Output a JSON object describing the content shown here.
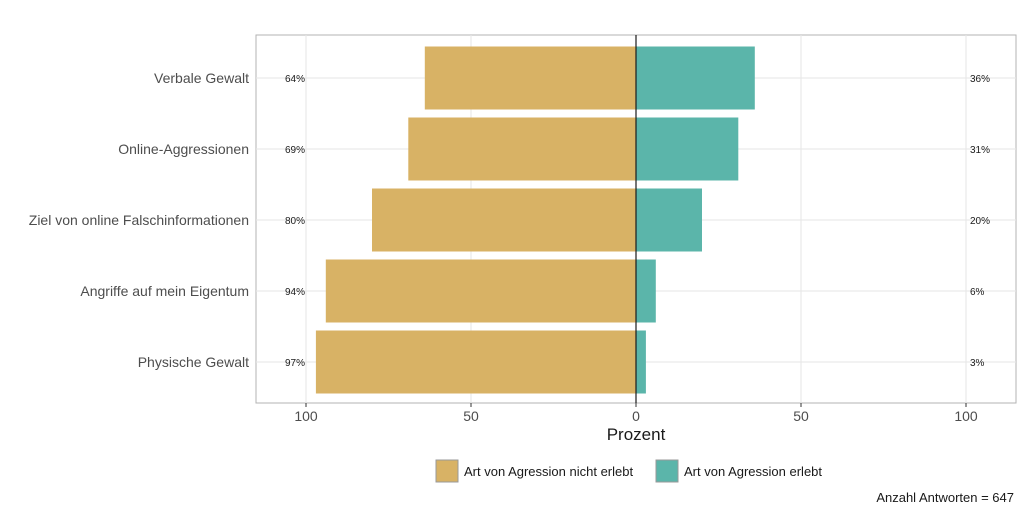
{
  "chart_data": {
    "type": "bar",
    "orientation": "horizontal-diverging",
    "categories": [
      "Verbale Gewalt",
      "Online-Aggressionen",
      "Ziel von online Falschinformationen",
      "Angriffe auf mein Eigentum",
      "Physische Gewalt"
    ],
    "series": [
      {
        "name": "Art von Agression nicht erlebt",
        "values": [
          64,
          69,
          80,
          94,
          97
        ],
        "labels": [
          "64%",
          "69%",
          "80%",
          "94%",
          "97%"
        ],
        "color": "#D8B265",
        "side": "left"
      },
      {
        "name": "Art von Agression erlebt",
        "values": [
          36,
          31,
          20,
          6,
          3
        ],
        "labels": [
          "36%",
          "31%",
          "20%",
          "6%",
          "3%"
        ],
        "color": "#5BB5AA",
        "side": "right"
      }
    ],
    "xlabel": "Prozent",
    "xlim": [
      -100,
      100
    ],
    "xticks": [
      {
        "value": -100,
        "label": "100"
      },
      {
        "value": -50,
        "label": "50"
      },
      {
        "value": 0,
        "label": "0"
      },
      {
        "value": 50,
        "label": "50"
      },
      {
        "value": 100,
        "label": "100"
      }
    ],
    "grid": true,
    "legend_position": "bottom",
    "note": "Anzahl Antworten = 647"
  }
}
